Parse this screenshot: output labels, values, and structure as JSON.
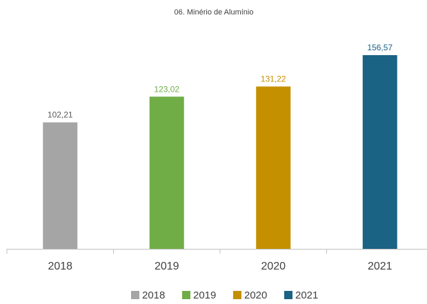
{
  "chart_data": {
    "type": "bar",
    "title": "06. Minério de Alumínio",
    "categories": [
      "2018",
      "2019",
      "2020",
      "2021"
    ],
    "values": [
      102.21,
      123.02,
      131.22,
      156.57
    ],
    "value_labels": [
      "102,21",
      "123,02",
      "131,22",
      "156,57"
    ],
    "colors": [
      "#a5a5a5",
      "#70ad47",
      "#c49000",
      "#1a6384"
    ],
    "legend": "bottom"
  }
}
